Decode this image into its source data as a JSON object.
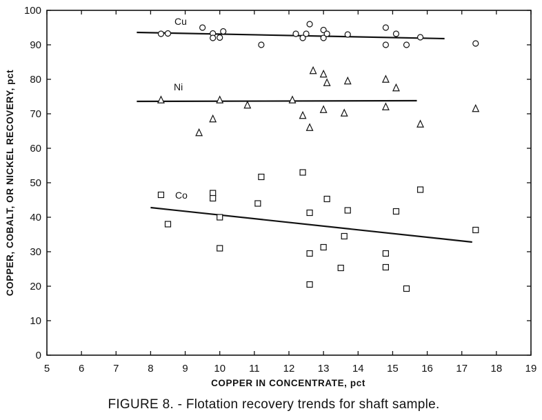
{
  "chart_data": {
    "type": "scatter",
    "title": "",
    "caption": "FIGURE 8. - Flotation recovery trends for shaft sample.",
    "xlabel": "COPPER IN CONCENTRATE, pct",
    "ylabel": "COPPER, COBALT, OR NICKEL RECOVERY, pct",
    "xlim": [
      5,
      19
    ],
    "ylim": [
      0,
      100
    ],
    "xticks": [
      5,
      6,
      7,
      8,
      9,
      10,
      11,
      12,
      13,
      14,
      15,
      16,
      17,
      18,
      19
    ],
    "yticks": [
      0,
      10,
      20,
      30,
      40,
      50,
      60,
      70,
      80,
      90,
      100
    ],
    "grid": false,
    "legend": "none",
    "series": [
      {
        "name": "Cu",
        "marker": "circle",
        "points": [
          [
            8.3,
            93.2
          ],
          [
            8.5,
            93.3
          ],
          [
            9.5,
            95.0
          ],
          [
            9.8,
            93.3
          ],
          [
            9.8,
            92.0
          ],
          [
            10.0,
            92.1
          ],
          [
            10.1,
            93.9
          ],
          [
            11.2,
            90.0
          ],
          [
            12.2,
            93.2
          ],
          [
            12.4,
            92.0
          ],
          [
            12.5,
            93.2
          ],
          [
            12.6,
            96.0
          ],
          [
            13.0,
            94.3
          ],
          [
            13.0,
            92.0
          ],
          [
            13.1,
            93.2
          ],
          [
            13.7,
            93.0
          ],
          [
            14.8,
            95.0
          ],
          [
            14.8,
            90.0
          ],
          [
            15.1,
            93.2
          ],
          [
            15.4,
            90.0
          ],
          [
            15.8,
            92.2
          ],
          [
            17.4,
            90.4
          ]
        ],
        "trend": [
          [
            7.6,
            93.6
          ],
          [
            16.5,
            91.8
          ]
        ]
      },
      {
        "name": "Ni",
        "marker": "triangle",
        "points": [
          [
            8.3,
            74.0
          ],
          [
            9.4,
            64.5
          ],
          [
            9.8,
            68.5
          ],
          [
            10.0,
            74.0
          ],
          [
            10.8,
            72.5
          ],
          [
            12.1,
            74.0
          ],
          [
            12.4,
            69.5
          ],
          [
            12.6,
            66.0
          ],
          [
            12.7,
            82.5
          ],
          [
            13.0,
            81.5
          ],
          [
            13.0,
            71.2
          ],
          [
            13.1,
            79.0
          ],
          [
            13.6,
            70.2
          ],
          [
            13.7,
            79.5
          ],
          [
            14.8,
            80.0
          ],
          [
            14.8,
            72.0
          ],
          [
            15.1,
            77.5
          ],
          [
            15.8,
            67.0
          ],
          [
            17.4,
            71.5
          ]
        ],
        "trend": [
          [
            7.6,
            73.6
          ],
          [
            15.7,
            73.8
          ]
        ]
      },
      {
        "name": "Co",
        "marker": "square",
        "points": [
          [
            8.3,
            46.5
          ],
          [
            8.5,
            38.0
          ],
          [
            9.8,
            47.0
          ],
          [
            9.8,
            45.5
          ],
          [
            10.0,
            40.0
          ],
          [
            10.0,
            31.0
          ],
          [
            11.1,
            44.0
          ],
          [
            11.2,
            51.7
          ],
          [
            12.4,
            53.0
          ],
          [
            12.6,
            41.3
          ],
          [
            12.6,
            29.5
          ],
          [
            12.6,
            20.5
          ],
          [
            13.0,
            31.3
          ],
          [
            13.1,
            45.3
          ],
          [
            13.5,
            25.3
          ],
          [
            13.6,
            34.5
          ],
          [
            13.7,
            42.0
          ],
          [
            14.8,
            29.5
          ],
          [
            14.8,
            25.5
          ],
          [
            15.1,
            41.7
          ],
          [
            15.4,
            19.3
          ],
          [
            15.8,
            48.0
          ],
          [
            17.4,
            36.3
          ]
        ],
        "trend": [
          [
            8.0,
            42.8
          ],
          [
            17.3,
            32.8
          ]
        ]
      }
    ]
  },
  "colors": {
    "ink": "#111111",
    "background": "#ffffff"
  }
}
